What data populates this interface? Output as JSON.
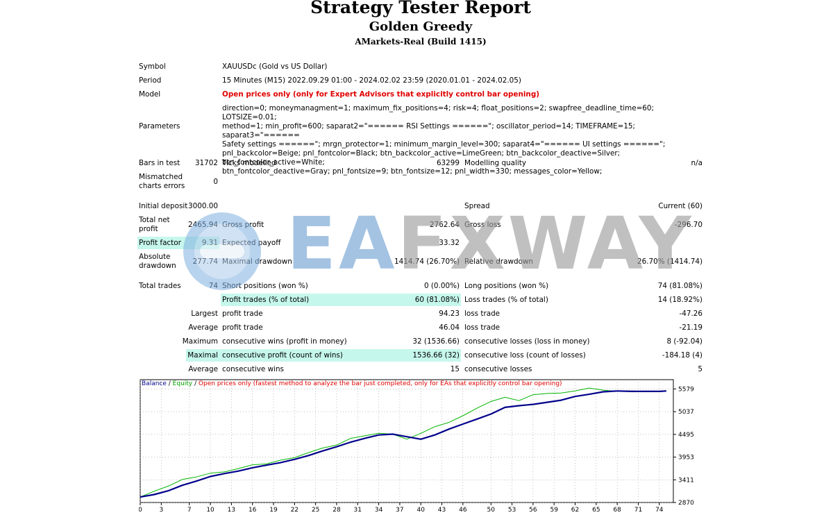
{
  "header": {
    "title": "Strategy Tester Report",
    "ea_name": "Golden Greedy",
    "server": "AMarkets-Real (Build 1415)"
  },
  "info": {
    "symbol_label": "Symbol",
    "symbol_value": "XAUUSDc (Gold vs US Dollar)",
    "period_label": "Period",
    "period_value": "15 Minutes (M15) 2022.09.29 01:00 - 2024.02.02 23:59 (2020.01.01 - 2024.02.05)",
    "model_label": "Model",
    "model_value": "Open prices only (only for Expert Advisors that explicitly control bar opening)",
    "parameters_label": "Parameters",
    "parameters_value": "direction=0; moneymanagment=1; maximum_fix_positions=4; risk=4; float_positions=2; swapfree_deadline_time=60; LOTSIZE=0.01;\nmethod=1; min_profit=600; saparat2=\"====== RSI Settings ======\"; oscillator_period=14; TIMEFRAME=15; saparat3=\"======\nSafety settings ======\"; mrgn_protector=1; minimum_margin_level=300; saparat4=\"====== UI settings ======\";\npnl_backcolor=Beige; pnl_fontcolor=Black; btn_backcolor_active=LimeGreen; btn_backcolor_deactive=Silver; btn_fontcolor_active=White;\nbtn_fontcolor_deactive=Gray; pnl_fontsize=9; btn_fontsize=12; pnl_width=330; messages_color=Yellow;"
  },
  "stats": {
    "bars_label": "Bars in test",
    "bars_value": "31702",
    "ticks_label": "Ticks modelled",
    "ticks_value": "63299",
    "quality_label": "Modelling quality",
    "quality_value": "n/a",
    "mismatch_label_1": "Mismatched",
    "mismatch_label_2": "charts errors",
    "mismatch_value": "0",
    "deposit_label": "Initial deposit",
    "deposit_value": "3000.00",
    "spread_label": "Spread",
    "spread_value": "Current (60)",
    "net_label_1": "Total net",
    "net_label_2": "profit",
    "net_value": "2465.94",
    "gross_profit_label": "Gross profit",
    "gross_profit_value": "2762.64",
    "gross_loss_label": "Gross loss",
    "gross_loss_value": "-296.70",
    "pf_label": "Profit factor",
    "pf_value": "9.31",
    "ep_label": "Expected payoff",
    "ep_value": "33.32",
    "abs_label_1": "Absolute",
    "abs_label_2": "drawdown",
    "abs_value": "277.74",
    "maxdd_label": "Maximal drawdown",
    "maxdd_value": "1414.74 (26.70%)",
    "reldd_label": "Relative drawdown",
    "reldd_value": "26.70% (1414.74)",
    "trades_label": "Total trades",
    "trades_value": "74",
    "short_label": "Short positions (won %)",
    "short_value": "0 (0.00%)",
    "long_label": "Long positions (won %)",
    "long_value": "74 (81.08%)",
    "pt_label": "Profit trades (% of total)",
    "pt_value": "60 (81.08%)",
    "lt_label": "Loss trades (% of total)",
    "lt_value": "14 (18.92%)",
    "largest_label": "Largest",
    "largest_profit_label": "profit trade",
    "largest_profit_value": "94.23",
    "largest_loss_label": "loss trade",
    "largest_loss_value": "-47.26",
    "average_label": "Average",
    "average_profit_label": "profit trade",
    "average_profit_value": "46.04",
    "average_loss_label": "loss trade",
    "average_loss_value": "-21.19",
    "maximum_label": "Maximum",
    "mcw_label": "consecutive wins (profit in money)",
    "mcw_value": "32 (1536.66)",
    "mcl_label": "consecutive losses (loss in money)",
    "mcl_value": "8 (-92.04)",
    "maximal_label": "Maximal",
    "mcp_label": "consecutive profit (count of wins)",
    "mcp_value": "1536.66 (32)",
    "mclc_label": "consecutive loss (count of losses)",
    "mclc_value": "-184.18 (4)",
    "average2_label": "Average",
    "acw_label": "consecutive wins",
    "acw_value": "15",
    "acl_label": "consecutive losses",
    "acl_value": "5"
  },
  "watermark": {
    "part1": "EA",
    "part2": "FXWAY"
  },
  "chart_caption": {
    "balance": "Balance",
    "sep1": " / ",
    "equity": "Equity",
    "sep2": " / ",
    "rest": "Open prices only (fastest method to analyze the bar just completed, only for EAs that explicitly control bar opening)"
  },
  "colors": {
    "balance": "#00008b",
    "equity": "#00b400",
    "highlight": "#c6f7ec",
    "model_text": "#e00000"
  },
  "chart_data": {
    "type": "line",
    "xlabel": "",
    "ylabel": "",
    "xlim": [
      0,
      76
    ],
    "ylim": [
      2870,
      5800
    ],
    "x_ticks": [
      0,
      3,
      7,
      10,
      13,
      16,
      19,
      22,
      25,
      28,
      31,
      34,
      37,
      40,
      43,
      46,
      50,
      53,
      56,
      59,
      62,
      65,
      68,
      71,
      74
    ],
    "y_ticks": [
      2870,
      3411,
      3953,
      4495,
      5037,
      5579
    ],
    "series": [
      {
        "name": "Balance",
        "x": [
          0,
          2,
          4,
          6,
          8,
          10,
          12,
          14,
          16,
          18,
          20,
          22,
          24,
          26,
          28,
          30,
          32,
          34,
          36,
          38,
          40,
          42,
          44,
          46,
          48,
          50,
          52,
          54,
          56,
          58,
          60,
          62,
          64,
          66,
          68,
          70,
          72,
          74,
          75
        ],
        "values": [
          3000,
          3060,
          3150,
          3280,
          3380,
          3490,
          3560,
          3620,
          3700,
          3760,
          3820,
          3900,
          3990,
          4100,
          4200,
          4310,
          4400,
          4480,
          4500,
          4440,
          4380,
          4480,
          4620,
          4740,
          4860,
          4980,
          5140,
          5180,
          5210,
          5260,
          5310,
          5400,
          5450,
          5510,
          5530,
          5520,
          5520,
          5520,
          5530
        ]
      },
      {
        "name": "Equity",
        "x": [
          0,
          2,
          4,
          6,
          8,
          10,
          12,
          14,
          16,
          18,
          20,
          22,
          24,
          26,
          28,
          30,
          32,
          34,
          36,
          38,
          40,
          42,
          44,
          46,
          48,
          50,
          52,
          54,
          56,
          58,
          60,
          62,
          64,
          66,
          68,
          70,
          72,
          74,
          75
        ],
        "values": [
          3000,
          3140,
          3260,
          3420,
          3480,
          3570,
          3600,
          3680,
          3770,
          3790,
          3880,
          3940,
          4060,
          4170,
          4240,
          4400,
          4460,
          4520,
          4500,
          4380,
          4520,
          4680,
          4780,
          4940,
          5120,
          5280,
          5380,
          5300,
          5440,
          5470,
          5480,
          5530,
          5600,
          5550,
          5520,
          5530,
          5520,
          5510,
          5540
        ]
      }
    ]
  }
}
